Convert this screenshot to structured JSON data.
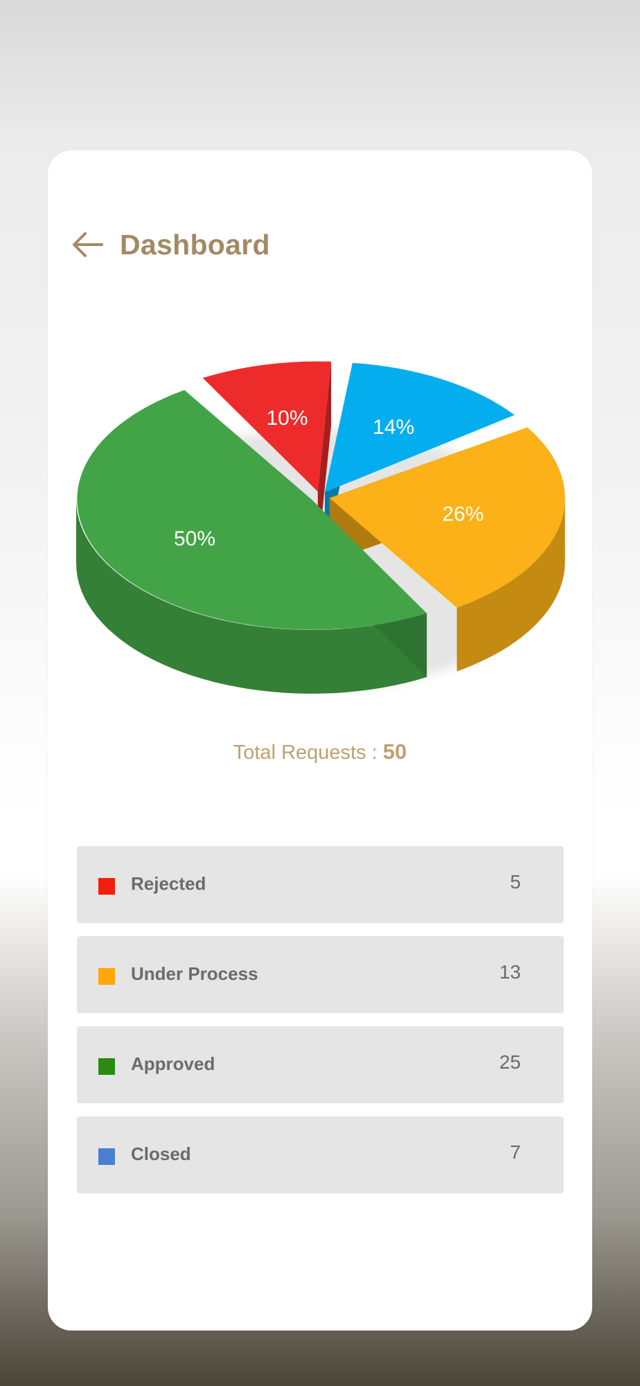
{
  "header": {
    "title": "Dashboard",
    "back_icon": "arrow-left-icon"
  },
  "colors": {
    "brand": "#a38a63",
    "total_text": "#bea06f",
    "row_bg": "#e5e5e5"
  },
  "chart_data": {
    "type": "pie",
    "categories": [
      "Rejected",
      "Closed",
      "Under Process",
      "Approved"
    ],
    "values": [
      10,
      14,
      26,
      50
    ],
    "labels": [
      "10%",
      "14%",
      "26%",
      "50%"
    ],
    "colors": [
      "#ee2b2b",
      "#04aeee",
      "#fbb117",
      "#43a447"
    ]
  },
  "summary": {
    "label": "Total Requests :",
    "value": "50"
  },
  "legend": {
    "items": [
      {
        "label": "Rejected",
        "count": "5",
        "color": "#f21f0b"
      },
      {
        "label": "Under Process",
        "count": "13",
        "color": "#ffa708"
      },
      {
        "label": "Approved",
        "count": "25",
        "color": "#2b8a11"
      },
      {
        "label": "Closed",
        "count": "7",
        "color": "#4a7fd0"
      }
    ]
  }
}
